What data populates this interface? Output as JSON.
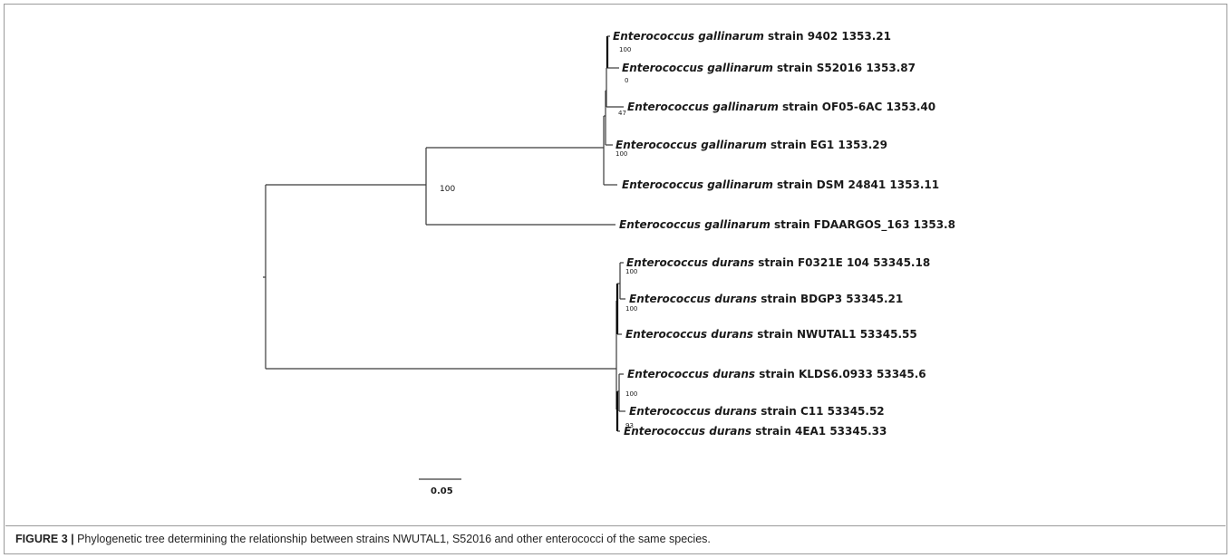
{
  "tree": {
    "tips": [
      {
        "id": "t1",
        "species": "Enterococcus gallinarum",
        "rest": " strain 9402 1353.21"
      },
      {
        "id": "t2",
        "species": "Enterococcus gallinarum",
        "rest": " strain S52016 1353.87"
      },
      {
        "id": "t3",
        "species": "Enterococcus gallinarum",
        "rest": " strain OF05-6AC 1353.40"
      },
      {
        "id": "t4",
        "species": "Enterococcus gallinarum",
        "rest": " strain EG1 1353.29"
      },
      {
        "id": "t5",
        "species": "Enterococcus gallinarum",
        "rest": " strain DSM 24841 1353.11"
      },
      {
        "id": "t6",
        "species": "Enterococcus gallinarum",
        "rest": " strain FDAARGOS_163 1353.8"
      },
      {
        "id": "t7",
        "species": "Enterococcus durans",
        "rest": " strain F0321E 104 53345.18"
      },
      {
        "id": "t8",
        "species": "Enterococcus durans",
        "rest": " strain BDGP3 53345.21"
      },
      {
        "id": "t9",
        "species": "Enterococcus durans",
        "rest": " strain NWUTAL1 53345.55"
      },
      {
        "id": "t10",
        "species": "Enterococcus durans",
        "rest": " strain KLDS6.0933 53345.6"
      },
      {
        "id": "t11",
        "species": "Enterococcus durans",
        "rest": " strain C11 53345.52"
      },
      {
        "id": "t12",
        "species": "Enterococcus durans",
        "rest": " strain 4EA1 53345.33"
      }
    ],
    "bootstraps": [
      "100",
      "0",
      "47",
      "100",
      "100",
      "100",
      "100",
      "100",
      "93"
    ],
    "scale_bar_label": "0.05"
  },
  "caption": {
    "label": "FIGURE 3 |",
    "text": " Phylogenetic tree determining the relationship between strains NWUTAL1, S52016 and other enterococci of the same species."
  }
}
